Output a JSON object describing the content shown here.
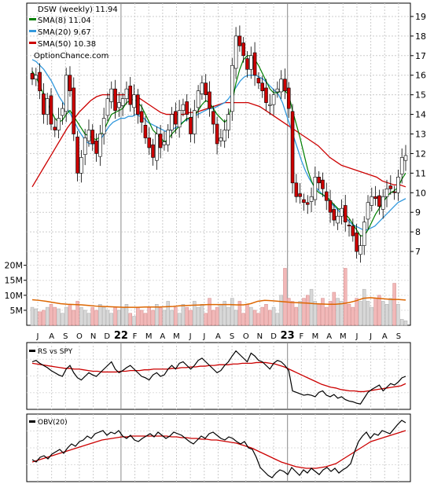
{
  "chart_data": {
    "type": "line",
    "title": "DSW (weekly) 11.94",
    "source": "OptionChance.com",
    "legend": [
      {
        "label": "SMA(8) 11.04",
        "color": "#008000"
      },
      {
        "label": "SMA(20) 9.67",
        "color": "#3399dd"
      },
      {
        "label": "SMA(50) 10.38",
        "color": "#cc0000"
      }
    ],
    "x_months": [
      "J",
      "A",
      "S",
      "O",
      "N",
      "D",
      "22",
      "F",
      "M",
      "A",
      "M",
      "J",
      "J",
      "A",
      "S",
      "O",
      "N",
      "D",
      "23",
      "F",
      "M",
      "A",
      "M",
      "J",
      "J",
      "A",
      "S"
    ],
    "y_price_ticks": [
      7,
      8,
      9,
      10,
      11,
      12,
      13,
      14,
      15,
      16,
      17,
      18,
      19
    ],
    "ylim_price": [
      6.2,
      19.6
    ],
    "volume_ticks": [
      "5M",
      "10M",
      "15M",
      "20M"
    ],
    "volume_tick_values": [
      5,
      10,
      15,
      20
    ],
    "ylim_volume_millions": [
      0,
      22
    ],
    "price": {
      "close": [
        15.8,
        16.0,
        15.2,
        14.0,
        14.8,
        13.5,
        13.2,
        13.8,
        14.3,
        16.0,
        15.2,
        13.0,
        11.0,
        11.8,
        12.8,
        13.2,
        12.5,
        12.0,
        13.0,
        13.8,
        14.8,
        15.3,
        14.2,
        14.6,
        14.8,
        15.3,
        14.5,
        15.0,
        14.0,
        13.6,
        12.8,
        12.3,
        11.8,
        13.0,
        12.3,
        12.6,
        13.2,
        14.0,
        13.5,
        14.2,
        14.5,
        14.0,
        13.0,
        14.2,
        15.2,
        15.6,
        15.0,
        14.3,
        13.5,
        12.5,
        12.8,
        13.2,
        14.0,
        16.5,
        18.0,
        17.5,
        17.0,
        16.3,
        17.0,
        16.0,
        15.6,
        15.2,
        14.6,
        14.5,
        15.0,
        15.3,
        15.8,
        15.2,
        14.3,
        10.5,
        9.8,
        9.8,
        9.5,
        9.4,
        9.8,
        10.8,
        10.5,
        10.2,
        9.6,
        9.0,
        8.6,
        8.8,
        9.2,
        8.5,
        8.3,
        7.8,
        7.0,
        7.3,
        8.5,
        9.5,
        9.8,
        9.7,
        9.3,
        9.8,
        10.2,
        10.2,
        10.0,
        10.8,
        11.8,
        11.9
      ],
      "sma8": [
        16.2,
        15.9,
        15.5,
        15.0,
        14.6,
        14.2,
        13.8,
        13.6,
        13.7,
        14.0,
        14.2,
        13.9,
        13.6,
        13.3,
        13.0,
        12.9,
        12.8,
        12.7,
        12.9,
        13.2,
        13.6,
        14.0,
        14.1,
        14.2,
        14.3,
        14.6,
        14.7,
        14.8,
        14.6,
        14.4,
        14.0,
        13.6,
        13.2,
        13.0,
        12.8,
        12.6,
        12.7,
        13.0,
        13.2,
        13.4,
        13.6,
        13.8,
        13.8,
        13.9,
        14.2,
        14.5,
        14.7,
        14.6,
        14.3,
        14.0,
        13.8,
        13.6,
        13.8,
        14.6,
        15.6,
        16.3,
        16.8,
        17.0,
        17.0,
        16.8,
        16.5,
        16.1,
        15.7,
        15.3,
        15.1,
        15.1,
        15.2,
        15.2,
        15.0,
        14.2,
        13.5,
        12.8,
        12.0,
        11.2,
        10.6,
        10.2,
        10.0,
        9.9,
        9.8,
        9.6,
        9.4,
        9.2,
        9.1,
        8.9,
        8.7,
        8.4,
        8.1,
        7.8,
        7.8,
        8.1,
        8.5,
        8.9,
        9.2,
        9.5,
        9.8,
        10.0,
        10.1,
        10.3,
        10.7,
        11.0
      ],
      "sma20": [
        16.8,
        16.7,
        16.5,
        16.3,
        16.0,
        15.7,
        15.3,
        14.9,
        14.6,
        14.3,
        14.0,
        13.6,
        13.2,
        12.9,
        12.6,
        12.5,
        12.5,
        12.6,
        12.8,
        13.1,
        13.4,
        13.6,
        13.7,
        13.8,
        13.8,
        13.9,
        13.9,
        14.0,
        13.9,
        13.8,
        13.6,
        13.5,
        13.4,
        13.3,
        13.2,
        13.1,
        13.2,
        13.3,
        13.4,
        13.6,
        13.7,
        13.8,
        13.9,
        14.0,
        14.1,
        14.2,
        14.3,
        14.3,
        14.4,
        14.5,
        14.6,
        14.8,
        15.1,
        15.4,
        15.7,
        15.9,
        16.0,
        16.0,
        16.0,
        15.9,
        15.8,
        15.6,
        15.4,
        15.2,
        15.0,
        14.6,
        14.0,
        13.4,
        12.8,
        12.2,
        11.6,
        11.1,
        10.7,
        10.4,
        10.2,
        10.0,
        9.8,
        9.6,
        9.4,
        9.2,
        9.0,
        8.8,
        8.6,
        8.4,
        8.3,
        8.2,
        8.1,
        8.1,
        8.2,
        8.3,
        8.5,
        8.7,
        8.9,
        9.1,
        9.3,
        9.5,
        9.6,
        9.7
      ],
      "sma50": [
        10.3,
        10.8,
        11.3,
        11.8,
        12.3,
        12.8,
        13.3,
        13.7,
        14.1,
        14.4,
        14.7,
        14.9,
        15.0,
        15.0,
        15.0,
        15.0,
        15.0,
        15.0,
        14.9,
        14.7,
        14.5,
        14.3,
        14.1,
        14.0,
        14.0,
        14.0,
        14.0,
        14.1,
        14.1,
        14.2,
        14.3,
        14.4,
        14.5,
        14.6,
        14.6,
        14.6,
        14.6,
        14.6,
        14.5,
        14.4,
        14.2,
        14.0,
        13.8,
        13.6,
        13.4,
        13.2,
        13.0,
        12.8,
        12.6,
        12.4,
        12.1,
        11.8,
        11.6,
        11.4,
        11.3,
        11.2,
        11.1,
        11.0,
        10.9,
        10.8,
        10.6,
        10.5,
        10.4,
        10.4,
        10.3
      ]
    },
    "volume_millions": [
      6,
      5.5,
      4.5,
      5,
      6,
      7,
      6,
      5.5,
      4,
      6,
      7,
      5,
      8,
      6,
      5,
      4,
      6,
      5,
      7,
      6,
      5,
      4,
      6,
      5,
      6,
      7,
      4,
      3,
      6,
      5,
      4,
      6,
      5,
      7,
      6,
      5,
      8,
      5,
      6,
      4,
      7,
      6,
      5,
      8,
      6,
      7,
      4,
      9,
      5,
      6,
      7,
      8,
      6,
      9,
      5,
      8,
      4,
      7,
      6,
      5,
      4,
      6,
      7,
      5,
      6,
      4,
      10,
      19,
      9,
      8,
      6,
      8,
      9,
      10,
      12,
      8,
      7,
      9,
      6,
      8,
      11,
      9,
      8,
      19,
      7,
      6,
      9,
      8,
      12,
      8,
      6,
      9,
      10,
      8,
      7,
      9,
      14,
      7,
      2,
      1.5
    ],
    "volume_sma_millions": [
      8.5,
      8.3,
      8.0,
      7.6,
      7.2,
      7.0,
      6.9,
      6.8,
      6.6,
      6.4,
      6.3,
      6.2,
      6.1,
      6.0,
      6.0,
      6.0,
      6.1,
      6.1,
      6.1,
      6.2,
      6.3,
      6.5,
      6.6,
      6.7,
      6.8,
      6.9,
      6.9,
      6.9,
      6.9,
      6.8,
      6.8,
      7.2,
      8.0,
      8.3,
      8.2,
      8.0,
      7.8,
      7.6,
      7.5,
      7.4,
      7.2,
      7.1,
      7.0,
      7.0,
      7.2,
      7.6,
      8.2,
      9.0,
      9.2,
      9.0,
      8.8,
      8.6,
      8.6,
      8.4
    ],
    "rs_panel": {
      "label": "RS vs SPY",
      "rs": [
        60,
        62,
        58,
        55,
        52,
        48,
        45,
        42,
        40,
        50,
        55,
        45,
        38,
        35,
        40,
        45,
        42,
        40,
        45,
        50,
        55,
        60,
        50,
        45,
        48,
        52,
        55,
        50,
        45,
        40,
        38,
        35,
        42,
        45,
        40,
        42,
        50,
        55,
        50,
        58,
        60,
        55,
        50,
        55,
        62,
        65,
        60,
        55,
        50,
        45,
        48,
        55,
        60,
        68,
        75,
        70,
        65,
        60,
        72,
        68,
        62,
        60,
        55,
        50,
        58,
        62,
        60,
        55,
        48,
        20,
        18,
        16,
        14,
        15,
        14,
        12,
        18,
        20,
        14,
        12,
        15,
        10,
        12,
        8,
        6,
        5,
        3,
        2,
        10,
        18,
        22,
        25,
        28,
        20,
        25,
        30,
        28,
        32,
        38,
        40
      ],
      "sma": [
        58,
        57,
        56,
        55,
        54,
        53,
        52,
        51,
        51,
        50,
        50,
        49,
        48,
        47,
        47,
        46,
        46,
        46,
        46,
        47,
        47,
        48,
        48,
        48,
        49,
        49,
        50,
        50,
        50,
        50,
        51,
        51,
        52,
        52,
        53,
        53,
        54,
        54,
        55,
        55,
        56,
        56,
        56,
        57,
        57,
        58,
        58,
        58,
        59,
        59,
        59,
        58,
        57,
        55,
        53,
        50,
        47,
        44,
        41,
        38,
        35,
        32,
        29,
        27,
        25,
        24,
        22,
        21,
        20,
        20,
        19,
        19,
        20,
        21,
        22,
        23,
        24,
        25,
        26,
        27,
        30
      ]
    },
    "obv_panel": {
      "label": "OBV(20)",
      "obv": [
        25,
        22,
        28,
        30,
        26,
        32,
        35,
        38,
        33,
        40,
        45,
        42,
        48,
        50,
        55,
        52,
        58,
        60,
        62,
        56,
        60,
        58,
        62,
        55,
        52,
        56,
        50,
        48,
        52,
        55,
        58,
        54,
        60,
        56,
        52,
        55,
        60,
        58,
        56,
        52,
        48,
        45,
        50,
        55,
        52,
        58,
        60,
        56,
        52,
        50,
        54,
        52,
        48,
        45,
        48,
        40,
        38,
        28,
        15,
        10,
        5,
        2,
        8,
        12,
        10,
        6,
        15,
        10,
        5,
        12,
        8,
        14,
        10,
        6,
        12,
        15,
        10,
        14,
        8,
        12,
        15,
        20,
        35,
        48,
        55,
        60,
        52,
        58,
        56,
        62,
        60,
        58,
        64,
        70,
        75,
        72
      ],
      "sma": [
        22,
        24,
        26,
        28,
        30,
        32,
        34,
        36,
        38,
        40,
        42,
        44,
        46,
        48,
        50,
        51,
        52,
        53,
        54,
        54,
        55,
        55,
        55,
        55,
        55,
        55,
        55,
        55,
        54,
        54,
        53,
        53,
        52,
        52,
        51,
        51,
        50,
        50,
        49,
        48,
        47,
        46,
        44,
        42,
        40,
        37,
        34,
        31,
        28,
        25,
        22,
        20,
        18,
        16,
        15,
        14,
        14,
        14,
        15,
        16,
        18,
        20,
        24,
        28,
        32,
        36,
        40,
        44,
        48,
        50,
        52,
        54,
        56,
        58,
        60,
        62
      ]
    }
  }
}
